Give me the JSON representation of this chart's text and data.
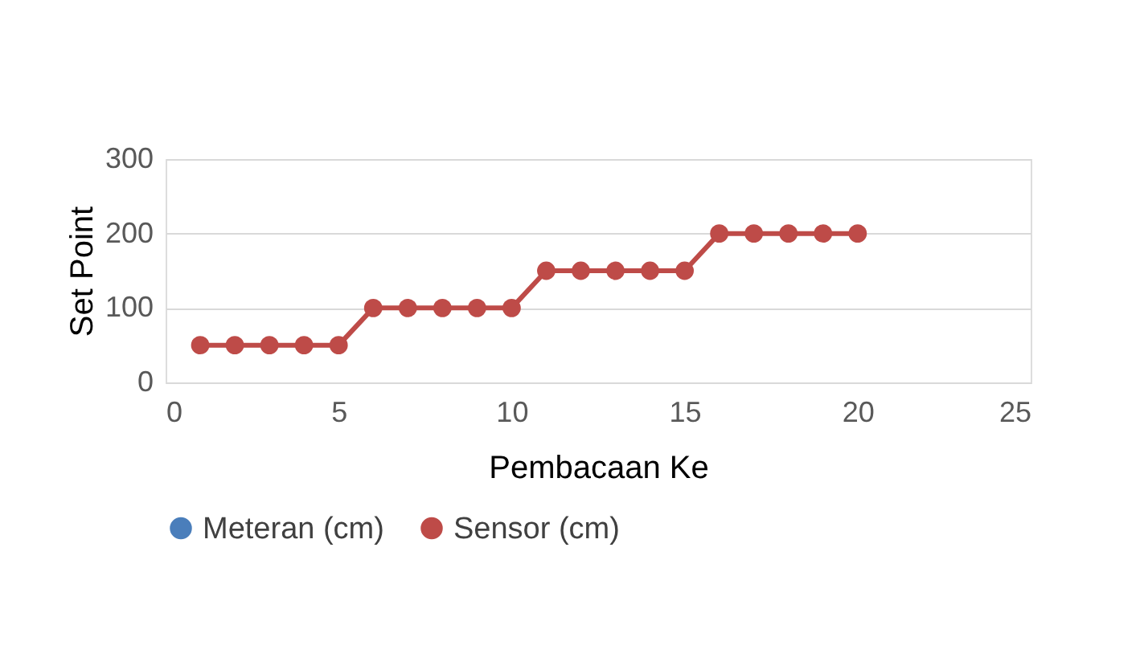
{
  "chart_data": {
    "type": "line",
    "xlabel": "Pembacaan Ke",
    "ylabel": "Set Point",
    "x": [
      1,
      2,
      3,
      4,
      5,
      6,
      7,
      8,
      9,
      10,
      11,
      12,
      13,
      14,
      15,
      16,
      17,
      18,
      19,
      20
    ],
    "series": [
      {
        "name": "Meteran (cm)",
        "color": "#4a7ebb",
        "values": [
          null,
          null,
          null,
          null,
          null,
          null,
          null,
          null,
          null,
          null,
          null,
          null,
          null,
          null,
          null,
          null,
          null,
          null,
          null,
          null
        ]
      },
      {
        "name": "Sensor (cm)",
        "color": "#be4b48",
        "values": [
          50,
          50,
          50,
          50,
          50,
          100,
          100,
          100,
          100,
          100,
          150,
          150,
          150,
          150,
          150,
          200,
          200,
          200,
          200,
          200
        ]
      }
    ],
    "xlim": [
      0,
      25
    ],
    "xticks": [
      0,
      5,
      10,
      15,
      20,
      25
    ],
    "ylim": [
      0,
      300
    ],
    "yticks": [
      0,
      100,
      200,
      300
    ],
    "grid": "y",
    "legend": "bottom",
    "marker": "circle",
    "line_style": "solid"
  }
}
